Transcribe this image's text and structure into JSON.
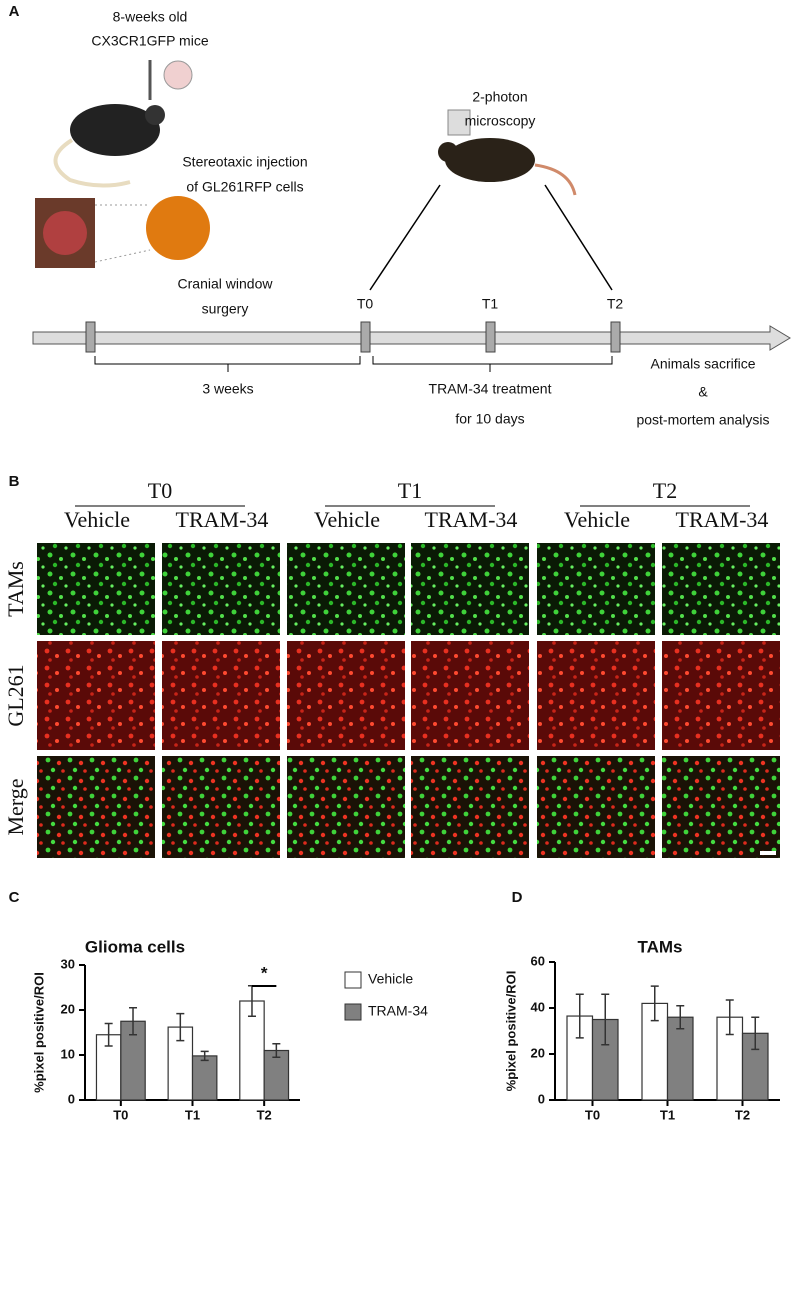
{
  "panel_a": {
    "label": "A",
    "mice": [
      "8-weeks old",
      "CX3CR1GFP mice"
    ],
    "imaging": [
      "2-photon",
      "microscopy"
    ],
    "injection": [
      "Stereotaxic  injection",
      "of GL261RFP cells"
    ],
    "surgery": [
      "Cranial window",
      "surgery"
    ],
    "timepoints": [
      "T0",
      "T1",
      "T2"
    ],
    "interval": "3 weeks",
    "treatment": [
      "TRAM-34 treatment",
      "for 10 days"
    ],
    "end": [
      "Animals sacrifice",
      "&",
      "post-mortem analysis"
    ]
  },
  "panel_b": {
    "label": "B",
    "timepoints": [
      "T0",
      "T1",
      "T2"
    ],
    "conditions": [
      "Vehicle",
      "TRAM-34",
      "Vehicle",
      "TRAM-34",
      "Vehicle",
      "TRAM-34"
    ],
    "rows": [
      "TAMs",
      "GL261",
      "Merge"
    ]
  },
  "chart_data": [
    {
      "type": "bar",
      "panel": "C",
      "title": "Glioma cells",
      "y_label": "%pixel positive/ROI",
      "categories": [
        "T0",
        "T1",
        "T2"
      ],
      "series": [
        {
          "name": "Vehicle",
          "color": "#ffffff",
          "values": [
            14.5,
            16.2,
            22
          ],
          "errors": [
            2.5,
            3,
            3.4
          ]
        },
        {
          "name": "TRAM-34",
          "color": "#808080",
          "values": [
            17.5,
            9.8,
            11
          ],
          "errors": [
            3,
            1,
            1.5
          ]
        }
      ],
      "ylim": [
        0,
        30
      ],
      "yticks": [
        0,
        10,
        20,
        30
      ],
      "annotation": "*"
    },
    {
      "type": "bar",
      "panel": "D",
      "title": "TAMs",
      "y_label": "%pixel positive/ROI",
      "categories": [
        "T0",
        "T1",
        "T2"
      ],
      "series": [
        {
          "color": "#ffffff",
          "values": [
            36.5,
            42,
            36
          ],
          "errors": [
            9.5,
            7.5,
            7.5
          ]
        },
        {
          "color": "#808080",
          "values": [
            35,
            36,
            29
          ],
          "errors": [
            11,
            5,
            7
          ]
        }
      ],
      "ylim": [
        0,
        60
      ],
      "yticks": [
        0,
        20,
        40,
        60
      ]
    }
  ]
}
